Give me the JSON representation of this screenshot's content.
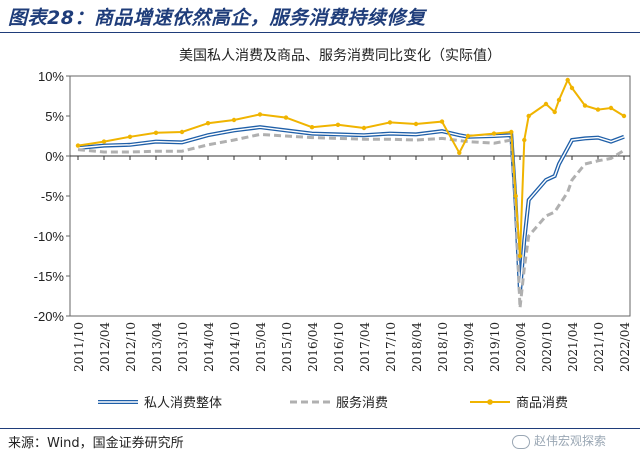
{
  "figure": {
    "title": "图表28：商品增速依然高企，服务消费持续修复",
    "source": "来源：Wind，国金证券研究所",
    "watermark": "赵伟宏观探索",
    "watermark_icon": "wechat-icon"
  },
  "chart_data": {
    "type": "line",
    "title": "美国私人消费及商品、服务消费同比变化（实际值）",
    "xlabel": "",
    "ylabel": "",
    "ylim": [
      -20,
      10
    ],
    "y_ticks": [
      "10%",
      "5%",
      "0%",
      "-5%",
      "-10%",
      "-15%",
      "-20%"
    ],
    "x_tick_labels": [
      "2011/10",
      "2012/04",
      "2012/10",
      "2013/04",
      "2013/10",
      "2014/04",
      "2014/10",
      "2015/04",
      "2015/10",
      "2016/04",
      "2016/10",
      "2017/04",
      "2017/10",
      "2018/04",
      "2018/10",
      "2019/04",
      "2019/10",
      "2020/04",
      "2020/10",
      "2021/04",
      "2021/10",
      "2022/04"
    ],
    "grid": false,
    "legend": "bottom",
    "series": [
      {
        "name": "私人消费整体",
        "color": "#1f5fa8",
        "style": "double-line",
        "points": [
          [
            "2011/10",
            1.0
          ],
          [
            "2012/04",
            1.3
          ],
          [
            "2012/10",
            1.4
          ],
          [
            "2013/04",
            1.8
          ],
          [
            "2013/10",
            1.7
          ],
          [
            "2014/04",
            2.6
          ],
          [
            "2014/10",
            3.2
          ],
          [
            "2015/04",
            3.6
          ],
          [
            "2015/10",
            3.2
          ],
          [
            "2016/04",
            2.8
          ],
          [
            "2016/10",
            2.7
          ],
          [
            "2017/04",
            2.6
          ],
          [
            "2017/10",
            2.8
          ],
          [
            "2018/04",
            2.7
          ],
          [
            "2018/10",
            3.1
          ],
          [
            "2019/02",
            2.6
          ],
          [
            "2019/04",
            2.4
          ],
          [
            "2019/10",
            2.5
          ],
          [
            "2020/02",
            2.6
          ],
          [
            "2020/03",
            -6.0
          ],
          [
            "2020/04",
            -17.0
          ],
          [
            "2020/05",
            -10.5
          ],
          [
            "2020/06",
            -5.5
          ],
          [
            "2020/10",
            -3.0
          ],
          [
            "2020/12",
            -2.5
          ],
          [
            "2021/01",
            -1.0
          ],
          [
            "2021/03",
            1.0
          ],
          [
            "2021/04",
            2.0
          ],
          [
            "2021/07",
            2.2
          ],
          [
            "2021/10",
            2.3
          ],
          [
            "2022/01",
            1.8
          ],
          [
            "2022/04",
            2.4
          ]
        ]
      },
      {
        "name": "服务消费",
        "color": "#b0b0b0",
        "style": "dashed",
        "points": [
          [
            "2011/10",
            0.8
          ],
          [
            "2012/04",
            0.5
          ],
          [
            "2012/10",
            0.5
          ],
          [
            "2013/04",
            0.6
          ],
          [
            "2013/10",
            0.6
          ],
          [
            "2014/04",
            1.4
          ],
          [
            "2014/10",
            2.0
          ],
          [
            "2015/04",
            2.7
          ],
          [
            "2015/10",
            2.5
          ],
          [
            "2016/04",
            2.3
          ],
          [
            "2016/10",
            2.2
          ],
          [
            "2017/04",
            2.1
          ],
          [
            "2017/10",
            2.1
          ],
          [
            "2018/04",
            2.0
          ],
          [
            "2018/10",
            2.2
          ],
          [
            "2019/04",
            1.8
          ],
          [
            "2019/10",
            1.6
          ],
          [
            "2020/02",
            2.0
          ],
          [
            "2020/03",
            -6.0
          ],
          [
            "2020/04",
            -19.0
          ],
          [
            "2020/05",
            -14.0
          ],
          [
            "2020/06",
            -10.0
          ],
          [
            "2020/10",
            -7.5
          ],
          [
            "2020/12",
            -7.0
          ],
          [
            "2021/03",
            -4.5
          ],
          [
            "2021/04",
            -3.0
          ],
          [
            "2021/07",
            -1.0
          ],
          [
            "2021/10",
            -0.6
          ],
          [
            "2022/01",
            -0.3
          ],
          [
            "2022/04",
            0.7
          ]
        ]
      },
      {
        "name": "商品消费",
        "color": "#f0b400",
        "style": "solid-markers",
        "points": [
          [
            "2011/10",
            1.3
          ],
          [
            "2012/04",
            1.8
          ],
          [
            "2012/10",
            2.4
          ],
          [
            "2013/04",
            2.9
          ],
          [
            "2013/10",
            3.0
          ],
          [
            "2014/04",
            4.1
          ],
          [
            "2014/10",
            4.5
          ],
          [
            "2015/04",
            5.2
          ],
          [
            "2015/10",
            4.8
          ],
          [
            "2016/04",
            3.6
          ],
          [
            "2016/10",
            3.9
          ],
          [
            "2017/04",
            3.5
          ],
          [
            "2017/10",
            4.2
          ],
          [
            "2018/04",
            4.0
          ],
          [
            "2018/10",
            4.3
          ],
          [
            "2019/02",
            0.4
          ],
          [
            "2019/04",
            2.5
          ],
          [
            "2019/10",
            2.8
          ],
          [
            "2020/02",
            3.0
          ],
          [
            "2020/03",
            -5.0
          ],
          [
            "2020/04",
            -12.5
          ],
          [
            "2020/05",
            2.0
          ],
          [
            "2020/06",
            5.0
          ],
          [
            "2020/10",
            6.5
          ],
          [
            "2020/12",
            5.5
          ],
          [
            "2021/01",
            7.0
          ],
          [
            "2021/03",
            9.5
          ],
          [
            "2021/04",
            8.5
          ],
          [
            "2021/07",
            6.3
          ],
          [
            "2021/10",
            5.8
          ],
          [
            "2022/01",
            6.0
          ],
          [
            "2022/04",
            5.0
          ]
        ]
      }
    ]
  }
}
